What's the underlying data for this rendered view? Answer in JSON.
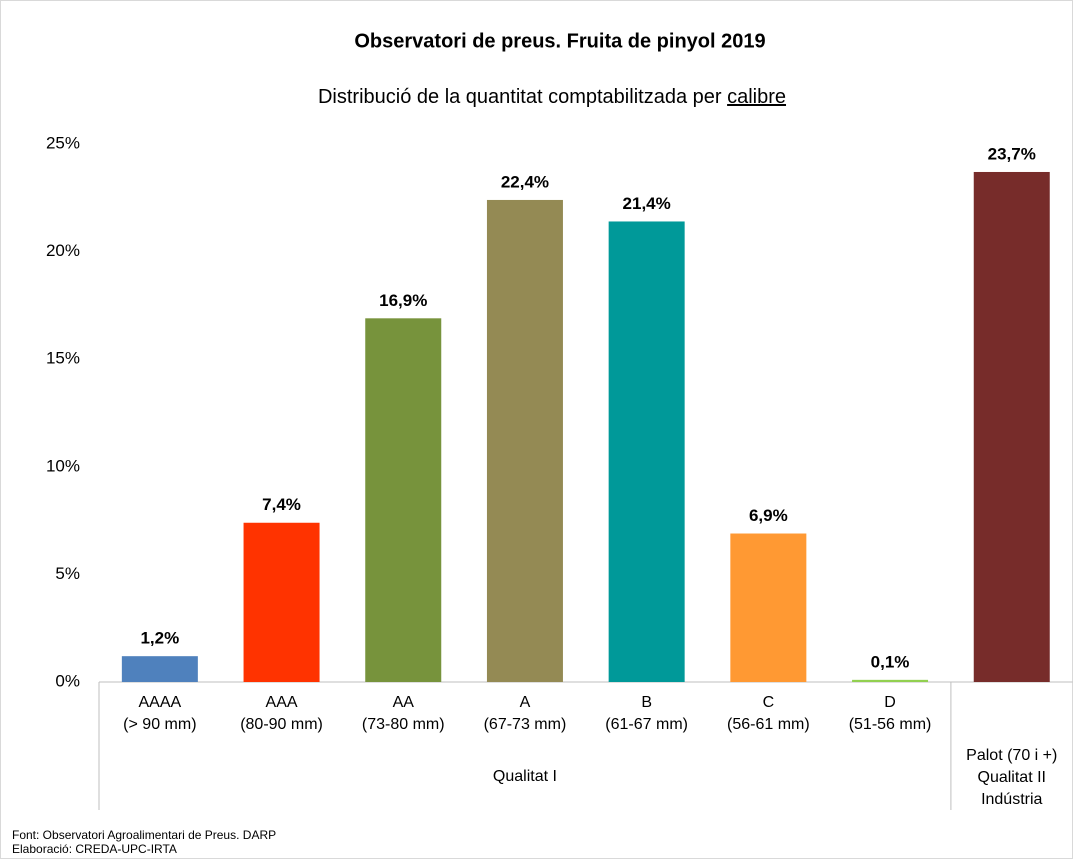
{
  "chart_data": {
    "type": "bar",
    "title": "Observatori de preus. Fruita de pinyol 2019",
    "subtitle": [
      "Distribució de la quantitat comptabilitzada per",
      "calibre"
    ],
    "categories": [
      [
        "AAAA",
        "(> 90 mm)"
      ],
      [
        "AAA",
        "(80-90 mm)"
      ],
      [
        "AA",
        "(73-80 mm)"
      ],
      [
        "A",
        "(67-73 mm)"
      ],
      [
        "B",
        "(61-67 mm)"
      ],
      [
        "C",
        "(56-61 mm)"
      ],
      [
        "D",
        "(51-56 mm)"
      ],
      null
    ],
    "groups": [
      {
        "label": [
          "Qualitat I"
        ],
        "count": 7
      },
      {
        "label": [
          "Palot (70 i +)",
          "Qualitat II",
          "Indústria"
        ],
        "count": 1
      }
    ],
    "values": [
      1.2,
      7.4,
      16.9,
      22.4,
      21.4,
      6.9,
      0.1,
      23.7
    ],
    "value_labels": [
      "1,2%",
      "7,4%",
      "16,9%",
      "22,4%",
      "21,4%",
      "6,9%",
      "0,1%",
      "23,7%"
    ],
    "colors": [
      "#4f81bd",
      "#ff3300",
      "#77933c",
      "#948a54",
      "#009999",
      "#ff9933",
      "#92d050",
      "#772c2a"
    ],
    "ylim": [
      0,
      25
    ],
    "yticks": [
      {
        "value": 0,
        "label": "0%"
      },
      {
        "value": 5,
        "label": "5%"
      },
      {
        "value": 10,
        "label": "10%"
      },
      {
        "value": 15,
        "label": "15%"
      },
      {
        "value": 20,
        "label": "20%"
      },
      {
        "value": 25,
        "label": "25%"
      }
    ],
    "grid": false,
    "source": [
      "Font: Observatori Agroalimentari de Preus. DARP",
      "Elaboració: CREDA-UPC-IRTA"
    ]
  }
}
